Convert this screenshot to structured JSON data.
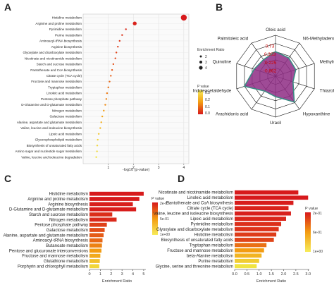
{
  "panel_letters": [
    "A",
    "B",
    "C",
    "D"
  ],
  "colors": {
    "gradient_high": "#f0e442",
    "gradient_mid": "#f39c12",
    "gradient_low": "#d7191c",
    "radar_fill": "#8e2c84",
    "radar_outline": "#3b8c84",
    "radar_value_text": "#d00000"
  },
  "chart_data": [
    {
      "id": "A",
      "type": "scatter",
      "xlabel": "-log10 (p-value)",
      "xticks": [
        1,
        2,
        3,
        4
      ],
      "xlim": [
        0,
        4.2
      ],
      "grid": true,
      "categories": [
        "Histidine metabolism",
        "Arginine and proline metabolism",
        "Pyrimidine metabolism",
        "Purine metabolism",
        "Aminoacyl-tRNA biosynthesis",
        "Arginine biosynthesis",
        "Glyoxylate and dicarboxylate metabolism",
        "Nicotinate and nicotinamide metabolism",
        "Starch and sucrose metabolism",
        "Pantothenate and CoA biosynthesis",
        "Citrate cycle (TCA cycle)",
        "Fructose and mannose metabolism",
        "Tryptophan metabolism",
        "Linoleic acid metabolism",
        "Pentose phosphate pathway",
        "D-Glutamine and D-glutamate metabolism",
        "Nitrogen metabolism",
        "Galactose metabolism",
        "Alanine, aspartate and glutamate metabolism",
        "Valine, leucine and isoleucine biosynthesis",
        "Lipoic acid metabolism",
        "Glycerophospholipid metabolism",
        "Biosynthesis of unsaturated fatty acids",
        "Amino sugar and nucleotide sugar metabolism",
        "Valine, leucine and isoleucine degradation"
      ],
      "x": [
        4.0,
        2.05,
        1.7,
        1.55,
        1.45,
        1.38,
        1.32,
        1.28,
        1.2,
        1.15,
        1.1,
        1.05,
        1.0,
        0.95,
        0.92,
        0.88,
        0.82,
        0.76,
        0.72,
        0.68,
        0.62,
        0.58,
        0.56,
        0.55,
        0.52
      ],
      "enrichment_ratio": [
        4,
        3,
        2,
        2,
        2,
        2,
        2,
        2,
        2,
        2,
        2,
        2,
        2,
        2,
        2,
        2,
        2,
        2,
        2,
        2,
        2,
        2,
        2,
        2,
        2
      ],
      "p_value": [
        0.0001,
        0.01,
        0.02,
        0.03,
        0.035,
        0.04,
        0.048,
        0.052,
        0.063,
        0.07,
        0.08,
        0.09,
        0.1,
        0.112,
        0.12,
        0.13,
        0.15,
        0.17,
        0.19,
        0.21,
        0.24,
        0.26,
        0.275,
        0.28,
        0.3
      ],
      "legend_size_title": "Enrichment Ratio",
      "legend_size_labels": [
        "2",
        "3",
        "4"
      ],
      "legend_color_title": "P value",
      "legend_color_ticks": [
        "0.3",
        "0.2",
        "0.1",
        "0.0"
      ]
    },
    {
      "id": "B",
      "type": "radar",
      "axes": [
        "Oleic acid",
        "N6-Methyladenosine",
        "Methylnicotinamide",
        "Thiazolecarbonitrile",
        "Hypoxanthine",
        "Uracil",
        "Arachidonic acid",
        "Indoleacetaldehyde",
        "Quinoline",
        "Palmitoleic acid"
      ],
      "tick_labels": [
        "0.73",
        "0.303",
        "-0.225",
        "-0.862"
      ],
      "values": [
        0.6,
        0.55,
        0.52,
        0.45,
        0.78,
        0.5,
        0.45,
        0.8,
        0.55,
        0.5
      ]
    },
    {
      "id": "C",
      "type": "bar",
      "orientation": "horizontal",
      "xlabel": "Enrichment Ratio",
      "xticks": [
        0,
        1,
        2,
        3,
        4,
        5
      ],
      "xlim": [
        0,
        5.2
      ],
      "categories": [
        "Histidine metabolism",
        "Arginine and proline metabolism",
        "Arginine biosynthesis",
        "D-Glutamine and D-glutamate metabolism",
        "Starch and sucrose metabolism",
        "Nitrogen metabolism",
        "Pentose phosphate pathway",
        "Galactose metabolism",
        "Alanine, aspartate and glutamate metabolism",
        "Aminoacyl-tRNA biosynthesis",
        "Butanoate metabolism",
        "Pentose and glucuronate interconversions",
        "Fructose and mannose metabolism",
        "Glutathione metabolism",
        "Porphyrin and chlorophyll metabolism"
      ],
      "values": [
        5.0,
        4.6,
        4.0,
        4.3,
        2.1,
        2.5,
        1.6,
        1.4,
        1.3,
        1.2,
        1.15,
        1.1,
        1.0,
        0.95,
        0.9
      ],
      "p_value": [
        0.002,
        0.005,
        0.02,
        0.015,
        0.08,
        0.06,
        0.15,
        0.2,
        0.25,
        0.3,
        0.4,
        0.5,
        0.6,
        0.75,
        0.9
      ],
      "legend_title": "P value",
      "legend_ticks": [
        "2e-03",
        "5e-01",
        "1e+00"
      ]
    },
    {
      "id": "D",
      "type": "bar",
      "orientation": "horizontal",
      "xlabel": "Enrichment Ratio",
      "xticks": [
        0.0,
        0.5,
        1.0,
        1.5,
        2.0,
        2.5,
        3.0
      ],
      "xlim": [
        0,
        3.05
      ],
      "categories": [
        "Nicotinate and nicotinamide metabolism",
        "Linoleic acid metabolism",
        "Pantothenate and CoA biosynthesis",
        "Citrate cycle (TCA cycle)",
        "Valine, leucine and isoleucine biosynthesis",
        "Lipoic acid metabolism",
        "Pyrimidine metabolism",
        "Glyoxylate and dicarboxylate metabolism",
        "Histidine metabolism",
        "Biosynthesis of unsaturated fatty acids",
        "Tryptophan metabolism",
        "Fructose and mannose metabolism",
        "beta-Alanine metabolism",
        "Purine metabolism",
        "Glycine, serine and threonine metabolism"
      ],
      "values": [
        2.6,
        3.0,
        2.4,
        2.2,
        2.3,
        2.1,
        1.9,
        1.8,
        1.7,
        1.6,
        1.3,
        1.2,
        1.1,
        1.0,
        0.9
      ],
      "p_value": [
        0.002,
        0.001,
        0.01,
        0.02,
        0.015,
        0.03,
        0.05,
        0.06,
        0.08,
        0.1,
        0.2,
        0.3,
        0.4,
        0.5,
        0.6
      ],
      "legend_title": "P value",
      "legend_ticks": [
        "2e-01",
        "6e-01",
        "1e+00"
      ]
    }
  ]
}
